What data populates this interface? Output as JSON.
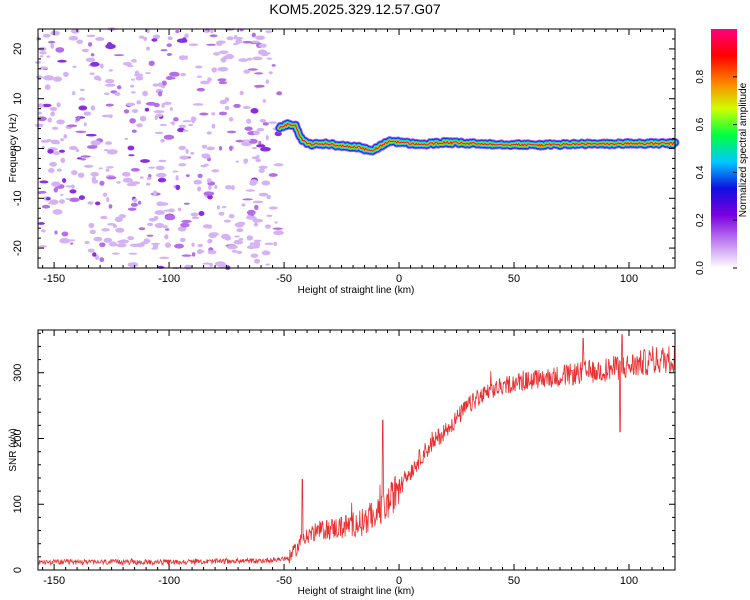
{
  "chart_data": [
    {
      "type": "heatmap",
      "title": "KOM5.2025.329.12.57.G07",
      "xlabel": "Height of straight line (km)",
      "ylabel": "Frequency (Hz)",
      "xlim": [
        -157,
        120
      ],
      "ylim": [
        -24,
        24
      ],
      "xticks": [
        -150,
        -100,
        -50,
        0,
        50,
        100
      ],
      "yticks": [
        -20,
        -10,
        0,
        10,
        20
      ],
      "colorbar": {
        "label": "Normalized spectral amplitude",
        "range": [
          0,
          1
        ],
        "ticks": [
          "0.0",
          "0.2",
          "0.4",
          "0.6",
          "0.8"
        ],
        "colors": [
          "#ffffff",
          "#c080f0",
          "#7a00e0",
          "#1010e0",
          "#00c8ff",
          "#00ff40",
          "#d0ff00",
          "#ff8000",
          "#ff0000",
          "#ff0080"
        ]
      },
      "ridge": {
        "description": "dominant Doppler frequency vs height",
        "x": [
          -52,
          -48,
          -45,
          -42,
          -38,
          -32,
          -25,
          -18,
          -12,
          -8,
          -4,
          0,
          5,
          10,
          15,
          20,
          25,
          30,
          40,
          50,
          60,
          70,
          80,
          90,
          100,
          110,
          120
        ],
        "y": [
          4.2,
          5.0,
          4.5,
          1.5,
          0.8,
          1.0,
          0.5,
          0.3,
          -0.5,
          0.5,
          1.5,
          1.3,
          1.0,
          0.8,
          1.0,
          1.2,
          1.1,
          1.0,
          0.9,
          0.8,
          0.7,
          0.8,
          0.9,
          0.9,
          1.0,
          1.0,
          1.0
        ]
      },
      "noise_region": {
        "x": [
          -157,
          -52
        ],
        "y": [
          -24,
          24
        ]
      }
    },
    {
      "type": "line",
      "title": "",
      "xlabel": "Height of straight line (km)",
      "ylabel": "SNR (v/v)",
      "xlim": [
        -157,
        120
      ],
      "ylim": [
        0,
        365
      ],
      "xticks": [
        -150,
        -100,
        -50,
        0,
        50,
        100
      ],
      "yticks": [
        0,
        100,
        200,
        300
      ],
      "series": [
        {
          "name": "SNR",
          "color": "#e83030",
          "trend": {
            "x": [
              -157,
              -100,
              -60,
              -48,
              -44,
              -42,
              -35,
              -25,
              -15,
              -10,
              -5,
              0,
              5,
              10,
              15,
              20,
              25,
              30,
              35,
              40,
              45,
              50,
              60,
              70,
              80,
              90,
              100,
              110,
              120
            ],
            "y": [
              12,
              12,
              14,
              18,
              35,
              50,
              60,
              65,
              75,
              85,
              100,
              125,
              150,
              175,
              195,
              212,
              230,
              250,
              262,
              272,
              280,
              285,
              290,
              295,
              300,
              305,
              310,
              318,
              322
            ]
          },
          "spikes": [
            {
              "x": -42,
              "y": 138
            },
            {
              "x": -7,
              "y": 228
            },
            {
              "x": 80,
              "y": 352
            },
            {
              "x": 97,
              "y": 358
            },
            {
              "x": 96,
              "y": 210
            }
          ]
        }
      ]
    }
  ]
}
